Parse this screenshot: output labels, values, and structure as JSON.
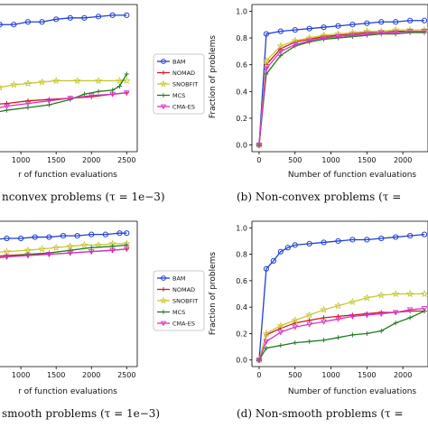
{
  "colors": {
    "BAM": "#1f3fd6",
    "NOMAD": "#d11a1a",
    "SNOBFIT": "#c8c832",
    "MCS": "#1f7a1f",
    "CMA-ES": "#d633c8"
  },
  "captions": {
    "a": "nconvex problems (τ = 1e−3)",
    "b": "(b) Non-convex problems (τ =",
    "c": "smooth problems (τ = 1e−3)",
    "d": "(d) Non-smooth problems (τ ="
  },
  "chart_data": [
    {
      "id": "a",
      "type": "line",
      "xlabel": "r of function evaluations",
      "ylabel": "",
      "xticks": [
        1000,
        1500,
        2000,
        2500
      ],
      "legend": [
        "BAM",
        "NOMAD",
        "SNOBFIT",
        "MCS",
        "CMA-ES"
      ],
      "series": [
        {
          "name": "BAM",
          "x": [
            200,
            300,
            400,
            500,
            700,
            900,
            1100,
            1300,
            1500,
            1700,
            1900,
            2100,
            2300,
            2500
          ],
          "y": [
            0.86,
            0.87,
            0.88,
            0.89,
            0.9,
            0.9,
            0.92,
            0.92,
            0.94,
            0.95,
            0.95,
            0.96,
            0.97,
            0.97
          ]
        },
        {
          "name": "NOMAD",
          "x": [
            200,
            500,
            800,
            1100,
            1400,
            1700,
            2000,
            2300,
            2500
          ],
          "y": [
            0.29,
            0.3,
            0.31,
            0.33,
            0.34,
            0.35,
            0.36,
            0.38,
            0.39
          ]
        },
        {
          "name": "SNOBFIT",
          "x": [
            200,
            350,
            500,
            700,
            900,
            1100,
            1300,
            1500,
            1800,
            2100,
            2400,
            2500
          ],
          "y": [
            0.39,
            0.4,
            0.42,
            0.43,
            0.45,
            0.46,
            0.47,
            0.48,
            0.48,
            0.48,
            0.48,
            0.48
          ]
        },
        {
          "name": "MCS",
          "x": [
            200,
            500,
            800,
            1100,
            1400,
            1700,
            1900,
            2100,
            2300,
            2400,
            2500
          ],
          "y": [
            0.21,
            0.23,
            0.26,
            0.28,
            0.3,
            0.34,
            0.38,
            0.4,
            0.41,
            0.44,
            0.53
          ]
        },
        {
          "name": "CMA-ES",
          "x": [
            200,
            500,
            800,
            1100,
            1400,
            1700,
            2000,
            2300,
            2500
          ],
          "y": [
            0.24,
            0.26,
            0.29,
            0.31,
            0.33,
            0.35,
            0.37,
            0.38,
            0.39
          ]
        }
      ]
    },
    {
      "id": "b",
      "type": "line",
      "xlabel": "Number of function evaluations",
      "ylabel": "Fraction of problems",
      "xticks": [
        0,
        500,
        1000,
        1500,
        2000
      ],
      "yticks": [
        "0.0",
        "0.2",
        "0.4",
        "0.6",
        "0.8",
        "1.0"
      ],
      "ylim": [
        0,
        1
      ],
      "series": [
        {
          "name": "BAM",
          "x": [
            0,
            100,
            300,
            500,
            700,
            900,
            1100,
            1300,
            1500,
            1700,
            1900,
            2100,
            2300
          ],
          "y": [
            0,
            0.83,
            0.85,
            0.86,
            0.87,
            0.88,
            0.89,
            0.9,
            0.91,
            0.92,
            0.92,
            0.93,
            0.93
          ]
        },
        {
          "name": "NOMAD",
          "x": [
            0,
            100,
            300,
            500,
            700,
            900,
            1100,
            1300,
            1500,
            1700,
            1900,
            2100,
            2300
          ],
          "y": [
            0,
            0.6,
            0.72,
            0.77,
            0.79,
            0.81,
            0.82,
            0.83,
            0.84,
            0.84,
            0.85,
            0.85,
            0.85
          ]
        },
        {
          "name": "SNOBFIT",
          "x": [
            0,
            100,
            300,
            500,
            700,
            900,
            1100,
            1300,
            1500,
            1700,
            1900,
            2100,
            2300
          ],
          "y": [
            0,
            0.63,
            0.74,
            0.78,
            0.8,
            0.82,
            0.83,
            0.84,
            0.85,
            0.85,
            0.86,
            0.86,
            0.86
          ]
        },
        {
          "name": "MCS",
          "x": [
            0,
            100,
            300,
            500,
            700,
            900,
            1100,
            1300,
            1500,
            1700,
            1900,
            2100,
            2300
          ],
          "y": [
            0,
            0.53,
            0.67,
            0.74,
            0.77,
            0.79,
            0.8,
            0.81,
            0.82,
            0.83,
            0.83,
            0.84,
            0.84
          ]
        },
        {
          "name": "CMA-ES",
          "x": [
            0,
            100,
            300,
            500,
            700,
            900,
            1100,
            1300,
            1500,
            1700,
            1900,
            2100,
            2300
          ],
          "y": [
            0,
            0.57,
            0.7,
            0.75,
            0.78,
            0.8,
            0.81,
            0.82,
            0.83,
            0.84,
            0.84,
            0.85,
            0.85
          ]
        }
      ]
    },
    {
      "id": "c",
      "type": "line",
      "xlabel": "r of function evaluations",
      "ylabel": "",
      "xticks": [
        1000,
        1500,
        2000,
        2500
      ],
      "legend": [
        "BAM",
        "NOMAD",
        "SNOBFIT",
        "MCS",
        "CMA-ES"
      ],
      "series": [
        {
          "name": "BAM",
          "x": [
            200,
            400,
            600,
            800,
            1000,
            1200,
            1400,
            1600,
            1800,
            2000,
            2200,
            2400,
            2500
          ],
          "y": [
            0.9,
            0.91,
            0.91,
            0.92,
            0.92,
            0.93,
            0.93,
            0.94,
            0.94,
            0.95,
            0.95,
            0.96,
            0.96
          ]
        },
        {
          "name": "NOMAD",
          "x": [
            200,
            500,
            800,
            1100,
            1400,
            1700,
            2000,
            2300,
            2500
          ],
          "y": [
            0.77,
            0.78,
            0.79,
            0.8,
            0.8,
            0.81,
            0.82,
            0.83,
            0.84
          ]
        },
        {
          "name": "SNOBFIT",
          "x": [
            200,
            500,
            800,
            1100,
            1300,
            1500,
            1700,
            1900,
            2100,
            2300,
            2500
          ],
          "y": [
            0.8,
            0.81,
            0.82,
            0.83,
            0.84,
            0.85,
            0.86,
            0.87,
            0.87,
            0.88,
            0.88
          ]
        },
        {
          "name": "MCS",
          "x": [
            200,
            500,
            800,
            1100,
            1400,
            1700,
            2000,
            2300,
            2500
          ],
          "y": [
            0.75,
            0.76,
            0.78,
            0.8,
            0.81,
            0.83,
            0.85,
            0.86,
            0.87
          ]
        },
        {
          "name": "CMA-ES",
          "x": [
            200,
            500,
            800,
            1100,
            1400,
            1700,
            2000,
            2300,
            2500
          ],
          "y": [
            0.76,
            0.77,
            0.78,
            0.79,
            0.8,
            0.81,
            0.82,
            0.83,
            0.84
          ]
        }
      ]
    },
    {
      "id": "d",
      "type": "line",
      "xlabel": "Number of function evaluations",
      "ylabel": "Fraction of problems",
      "xticks": [
        0,
        500,
        1000,
        1500,
        2000
      ],
      "yticks": [
        "0.0",
        "0.2",
        "0.4",
        "0.6",
        "0.8",
        "1.0"
      ],
      "ylim": [
        0,
        1
      ],
      "series": [
        {
          "name": "BAM",
          "x": [
            0,
            100,
            200,
            300,
            400,
            500,
            700,
            900,
            1100,
            1300,
            1500,
            1700,
            1900,
            2100,
            2300
          ],
          "y": [
            0,
            0.69,
            0.75,
            0.82,
            0.85,
            0.87,
            0.88,
            0.89,
            0.9,
            0.91,
            0.91,
            0.92,
            0.93,
            0.94,
            0.95
          ]
        },
        {
          "name": "NOMAD",
          "x": [
            0,
            100,
            300,
            500,
            700,
            900,
            1100,
            1300,
            1500,
            1700,
            1900,
            2100,
            2300
          ],
          "y": [
            0,
            0.19,
            0.24,
            0.28,
            0.3,
            0.32,
            0.33,
            0.34,
            0.35,
            0.36,
            0.36,
            0.37,
            0.37
          ]
        },
        {
          "name": "SNOBFIT",
          "x": [
            0,
            100,
            300,
            500,
            700,
            900,
            1100,
            1300,
            1500,
            1700,
            1900,
            2100,
            2300
          ],
          "y": [
            0,
            0.2,
            0.26,
            0.3,
            0.34,
            0.38,
            0.41,
            0.44,
            0.47,
            0.49,
            0.5,
            0.5,
            0.5
          ]
        },
        {
          "name": "MCS",
          "x": [
            0,
            100,
            300,
            500,
            700,
            900,
            1100,
            1300,
            1500,
            1700,
            1900,
            2100,
            2300
          ],
          "y": [
            0,
            0.09,
            0.11,
            0.13,
            0.14,
            0.15,
            0.17,
            0.19,
            0.2,
            0.22,
            0.28,
            0.32,
            0.37
          ]
        },
        {
          "name": "CMA-ES",
          "x": [
            0,
            100,
            300,
            500,
            700,
            900,
            1100,
            1300,
            1500,
            1700,
            1900,
            2100,
            2300
          ],
          "y": [
            0,
            0.14,
            0.21,
            0.25,
            0.27,
            0.29,
            0.31,
            0.33,
            0.34,
            0.35,
            0.36,
            0.38,
            0.39
          ]
        }
      ]
    }
  ]
}
